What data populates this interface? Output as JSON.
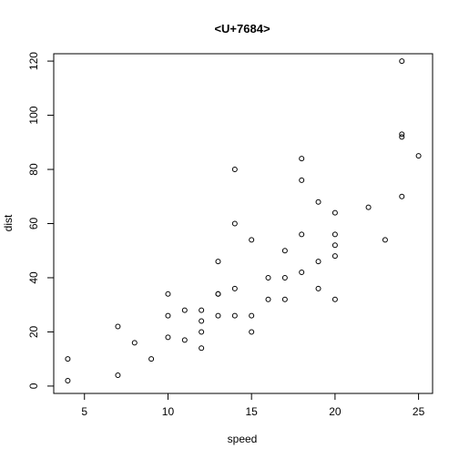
{
  "chart_data": {
    "type": "scatter",
    "title": "<U+7684>",
    "xlabel": "speed",
    "ylabel": "dist",
    "xlim": [
      3.16,
      25.84
    ],
    "ylim": [
      -2.72,
      122.72
    ],
    "xticks": [
      5,
      10,
      15,
      20,
      25
    ],
    "yticks": [
      0,
      20,
      40,
      60,
      80,
      100,
      120
    ],
    "grid": false,
    "legend": "none",
    "marker": "open-circle",
    "series": [
      {
        "points": [
          [
            4,
            2
          ],
          [
            4,
            10
          ],
          [
            7,
            4
          ],
          [
            7,
            22
          ],
          [
            8,
            16
          ],
          [
            9,
            10
          ],
          [
            10,
            18
          ],
          [
            10,
            26
          ],
          [
            10,
            34
          ],
          [
            11,
            17
          ],
          [
            11,
            28
          ],
          [
            12,
            14
          ],
          [
            12,
            20
          ],
          [
            12,
            24
          ],
          [
            12,
            28
          ],
          [
            13,
            26
          ],
          [
            13,
            34
          ],
          [
            13,
            34
          ],
          [
            13,
            46
          ],
          [
            14,
            26
          ],
          [
            14,
            36
          ],
          [
            14,
            60
          ],
          [
            14,
            80
          ],
          [
            15,
            20
          ],
          [
            15,
            26
          ],
          [
            15,
            54
          ],
          [
            16,
            32
          ],
          [
            16,
            40
          ],
          [
            17,
            32
          ],
          [
            17,
            40
          ],
          [
            17,
            50
          ],
          [
            18,
            42
          ],
          [
            18,
            56
          ],
          [
            18,
            76
          ],
          [
            18,
            84
          ],
          [
            19,
            36
          ],
          [
            19,
            46
          ],
          [
            19,
            68
          ],
          [
            20,
            32
          ],
          [
            20,
            48
          ],
          [
            20,
            52
          ],
          [
            20,
            56
          ],
          [
            20,
            64
          ],
          [
            22,
            66
          ],
          [
            23,
            54
          ],
          [
            24,
            70
          ],
          [
            24,
            92
          ],
          [
            24,
            93
          ],
          [
            24,
            120
          ],
          [
            25,
            85
          ]
        ]
      }
    ]
  }
}
